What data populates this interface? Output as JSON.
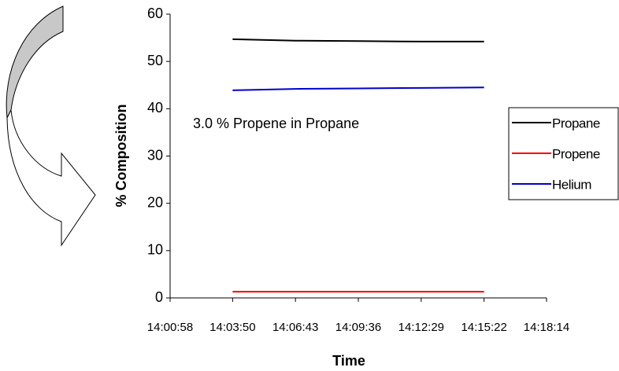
{
  "chart_data": {
    "type": "line",
    "annotation": "3.0 % Propene in Propane",
    "x_label": "Time",
    "y_label": "% Composition",
    "x": [
      "14:03:50",
      "14:06:43",
      "14:09:36",
      "14:12:29",
      "14:15:22"
    ],
    "series": [
      {
        "name": "Propane",
        "color": "#000000",
        "values": [
          54.7,
          54.4,
          54.3,
          54.2,
          54.2
        ]
      },
      {
        "name": "Propene",
        "color": "#ff0000",
        "values": [
          1.3,
          1.3,
          1.3,
          1.3,
          1.3
        ]
      },
      {
        "name": "Helium",
        "color": "#0000cc",
        "values": [
          43.9,
          44.2,
          44.3,
          44.4,
          44.5
        ]
      }
    ],
    "xlim": [
      "14:00:58",
      "14:18:14"
    ],
    "xticks": [
      "14:00:58",
      "14:03:50",
      "14:06:43",
      "14:09:36",
      "14:12:29",
      "14:15:22",
      "14:18:14"
    ],
    "ylim": [
      0,
      60
    ],
    "yticks": [
      0,
      10,
      20,
      30,
      40,
      50,
      60
    ],
    "grid": false,
    "legend": "right"
  }
}
